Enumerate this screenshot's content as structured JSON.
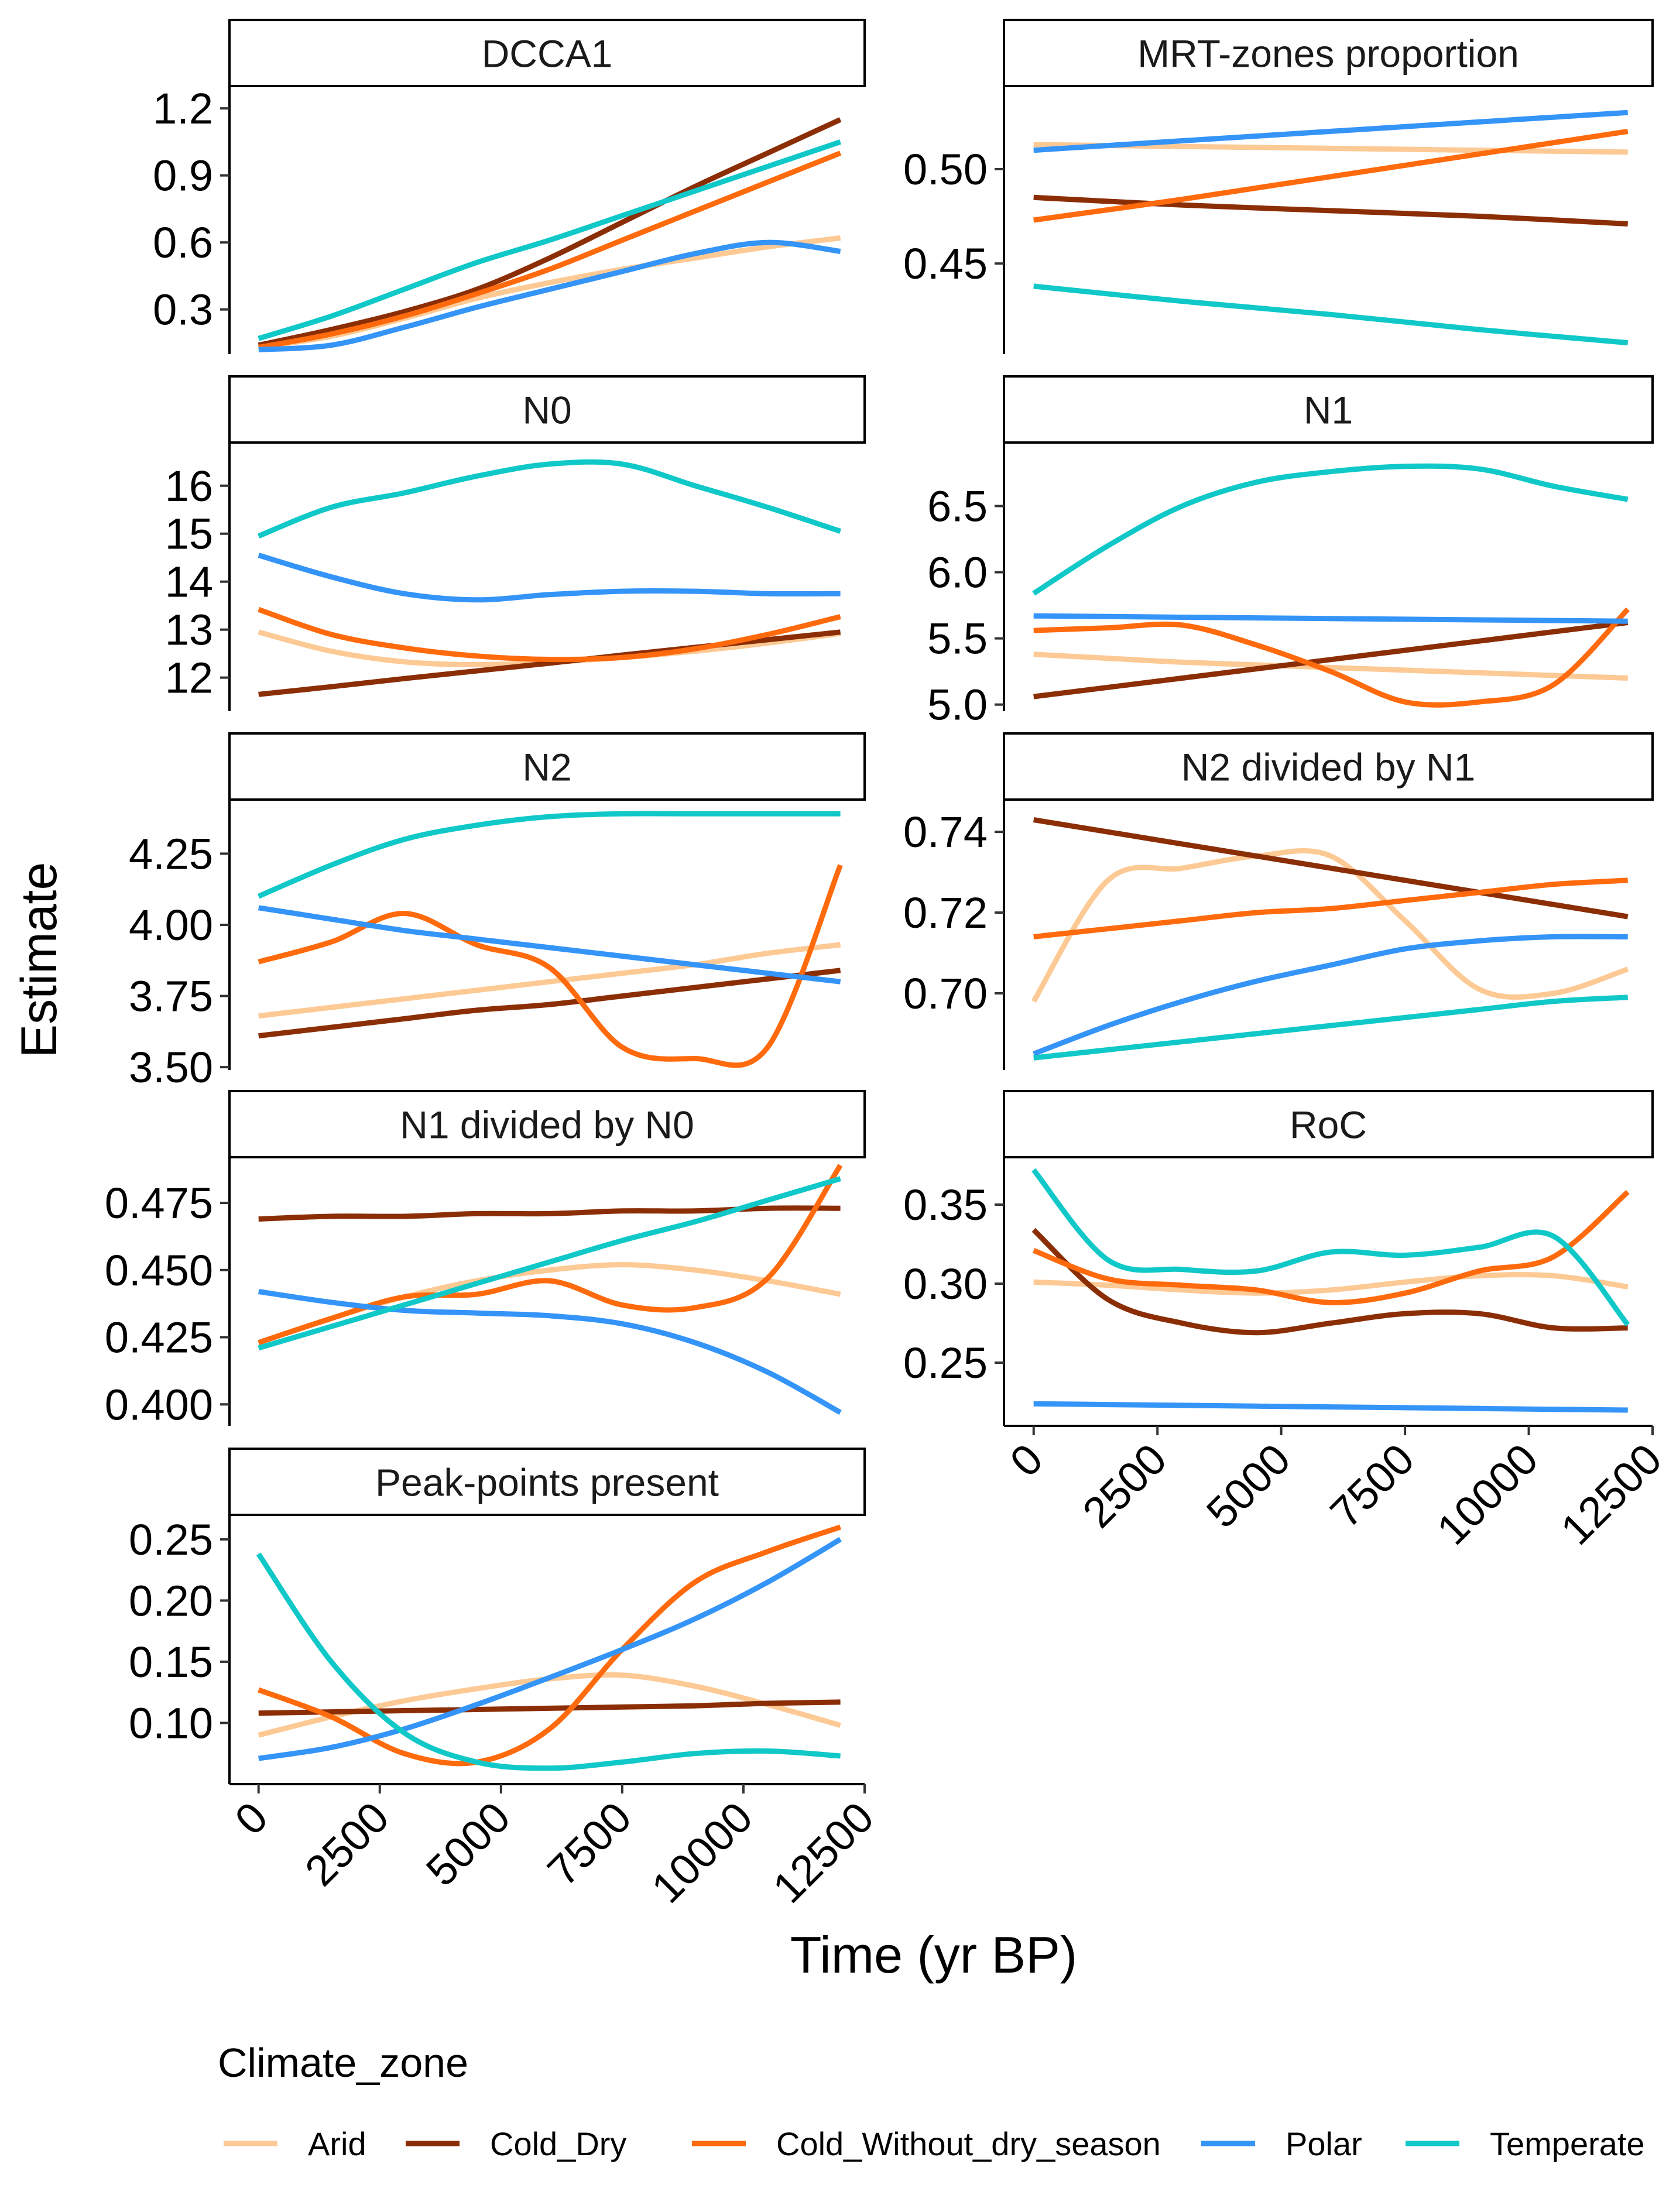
{
  "figure": {
    "ylabel": "Estimate",
    "xlabel": "Time (yr BP)",
    "legend_title": "Climate_zone",
    "legend_position": "bottom"
  },
  "series_colors": {
    "Arid": "#FDC994",
    "Cold_Dry": "#8B2E06",
    "Cold_Without_dry_season": "#FF6A0D",
    "Polar": "#3494F8",
    "Temperate": "#10C8C8"
  },
  "legend": [
    {
      "name": "Arid",
      "color": "#FDC994"
    },
    {
      "name": "Cold_Dry",
      "color": "#8B2E06"
    },
    {
      "name": "Cold_Without_dry_season",
      "color": "#FF6A0D"
    },
    {
      "name": "Polar",
      "color": "#3494F8"
    },
    {
      "name": "Temperate",
      "color": "#10C8C8"
    }
  ],
  "x_ticks": [
    "0",
    "2500",
    "5000",
    "7500",
    "10000",
    "12500"
  ],
  "chart_data": [
    {
      "type": "line",
      "title": "DCCA1",
      "xlim": [
        -600,
        12500
      ],
      "ylim": [
        0.1,
        1.3
      ],
      "yticks": [
        0.3,
        0.6,
        0.9,
        1.2
      ],
      "ytick_labels": [
        "0.3",
        "0.6",
        "0.9",
        "1.2"
      ],
      "x": [
        0,
        1500,
        3000,
        4500,
        6000,
        7500,
        9000,
        10500,
        12000
      ],
      "series": [
        {
          "name": "Arid",
          "values": [
            0.13,
            0.18,
            0.26,
            0.35,
            0.42,
            0.48,
            0.53,
            0.58,
            0.62
          ]
        },
        {
          "name": "Cold_Dry",
          "values": [
            0.14,
            0.21,
            0.29,
            0.39,
            0.53,
            0.69,
            0.85,
            1.0,
            1.15
          ]
        },
        {
          "name": "Cold_Without_dry_season",
          "values": [
            0.13,
            0.19,
            0.27,
            0.37,
            0.48,
            0.61,
            0.74,
            0.87,
            1.0
          ]
        },
        {
          "name": "Polar",
          "values": [
            0.12,
            0.14,
            0.22,
            0.31,
            0.39,
            0.47,
            0.55,
            0.6,
            0.56
          ]
        },
        {
          "name": "Temperate",
          "values": [
            0.17,
            0.27,
            0.39,
            0.51,
            0.61,
            0.72,
            0.83,
            0.94,
            1.05
          ]
        }
      ]
    },
    {
      "type": "line",
      "title": "MRT-zones proportion",
      "xlim": [
        -600,
        12500
      ],
      "ylim": [
        0.402,
        0.544
      ],
      "yticks": [
        0.45,
        0.5
      ],
      "ytick_labels": [
        "0.45",
        "0.50"
      ],
      "x": [
        0,
        3000,
        6000,
        9000,
        12000
      ],
      "series": [
        {
          "name": "Arid",
          "values": [
            0.513,
            0.512,
            0.511,
            0.51,
            0.509
          ]
        },
        {
          "name": "Cold_Dry",
          "values": [
            0.485,
            0.481,
            0.478,
            0.475,
            0.471
          ]
        },
        {
          "name": "Cold_Without_dry_season",
          "values": [
            0.473,
            0.484,
            0.496,
            0.508,
            0.52
          ]
        },
        {
          "name": "Polar",
          "values": [
            0.51,
            0.515,
            0.52,
            0.525,
            0.53
          ]
        },
        {
          "name": "Temperate",
          "values": [
            0.438,
            0.43,
            0.423,
            0.415,
            0.408
          ]
        }
      ]
    },
    {
      "type": "line",
      "title": "N0",
      "xlim": [
        -600,
        12500
      ],
      "ylim": [
        11.3,
        16.9
      ],
      "yticks": [
        12,
        13,
        14,
        15,
        16
      ],
      "ytick_labels": [
        "12",
        "13",
        "14",
        "15",
        "16"
      ],
      "x": [
        0,
        1500,
        3000,
        4500,
        6000,
        7500,
        9000,
        10500,
        12000
      ],
      "series": [
        {
          "name": "Arid",
          "values": [
            12.95,
            12.55,
            12.33,
            12.27,
            12.32,
            12.42,
            12.55,
            12.72,
            12.92
          ]
        },
        {
          "name": "Cold_Dry",
          "values": [
            11.65,
            11.81,
            11.98,
            12.14,
            12.3,
            12.47,
            12.63,
            12.79,
            12.95
          ]
        },
        {
          "name": "Cold_Without_dry_season",
          "values": [
            13.42,
            12.9,
            12.62,
            12.45,
            12.38,
            12.42,
            12.6,
            12.9,
            13.27
          ]
        },
        {
          "name": "Polar",
          "values": [
            14.55,
            14.1,
            13.75,
            13.62,
            13.73,
            13.8,
            13.8,
            13.75,
            13.75
          ]
        },
        {
          "name": "Temperate",
          "values": [
            14.95,
            15.55,
            15.85,
            16.2,
            16.45,
            16.45,
            16.0,
            15.55,
            15.05
          ]
        }
      ]
    },
    {
      "type": "line",
      "title": "N1",
      "xlim": [
        -600,
        12500
      ],
      "ylim": [
        4.95,
        6.98
      ],
      "yticks": [
        5.0,
        5.5,
        6.0,
        6.5
      ],
      "ytick_labels": [
        "5.0",
        "5.5",
        "6.0",
        "6.5"
      ],
      "x": [
        0,
        1500,
        3000,
        4500,
        6000,
        7500,
        9000,
        10500,
        12000
      ],
      "series": [
        {
          "name": "Arid",
          "values": [
            5.38,
            5.35,
            5.32,
            5.3,
            5.28,
            5.26,
            5.24,
            5.22,
            5.2
          ]
        },
        {
          "name": "Cold_Dry",
          "values": [
            5.06,
            5.13,
            5.2,
            5.27,
            5.34,
            5.41,
            5.48,
            5.55,
            5.62
          ]
        },
        {
          "name": "Cold_Without_dry_season",
          "values": [
            5.56,
            5.58,
            5.6,
            5.45,
            5.25,
            5.02,
            5.02,
            5.15,
            5.72
          ]
        },
        {
          "name": "Polar",
          "values": [
            5.67,
            5.665,
            5.66,
            5.655,
            5.65,
            5.645,
            5.64,
            5.635,
            5.63
          ]
        },
        {
          "name": "Temperate",
          "values": [
            5.84,
            6.2,
            6.5,
            6.68,
            6.76,
            6.8,
            6.78,
            6.65,
            6.55
          ]
        }
      ]
    },
    {
      "type": "line",
      "title": "N2",
      "xlim": [
        -600,
        12500
      ],
      "ylim": [
        3.49,
        4.44
      ],
      "yticks": [
        3.5,
        3.75,
        4.0,
        4.25
      ],
      "ytick_labels": [
        "3.50",
        "3.75",
        "4.00",
        "4.25"
      ],
      "x": [
        0,
        1500,
        3000,
        4500,
        6000,
        7500,
        9000,
        10500,
        12000
      ],
      "series": [
        {
          "name": "Arid",
          "values": [
            3.68,
            3.71,
            3.74,
            3.77,
            3.8,
            3.83,
            3.86,
            3.9,
            3.93
          ]
        },
        {
          "name": "Cold_Dry",
          "values": [
            3.61,
            3.64,
            3.67,
            3.7,
            3.72,
            3.75,
            3.78,
            3.81,
            3.84
          ]
        },
        {
          "name": "Cold_Without_dry_season",
          "values": [
            3.87,
            3.94,
            4.04,
            3.93,
            3.85,
            3.57,
            3.53,
            3.57,
            4.21
          ]
        },
        {
          "name": "Polar",
          "values": [
            4.06,
            4.02,
            3.98,
            3.95,
            3.92,
            3.89,
            3.86,
            3.83,
            3.8
          ]
        },
        {
          "name": "Temperate",
          "values": [
            4.1,
            4.21,
            4.3,
            4.35,
            4.38,
            4.39,
            4.39,
            4.39,
            4.39
          ]
        }
      ]
    },
    {
      "type": "line",
      "title": "N2 divided by N1",
      "xlim": [
        -600,
        12500
      ],
      "ylim": [
        0.681,
        0.748
      ],
      "yticks": [
        0.7,
        0.72,
        0.74
      ],
      "ytick_labels": [
        "0.70",
        "0.72",
        "0.74"
      ],
      "x": [
        0,
        1500,
        3000,
        4500,
        6000,
        7500,
        9000,
        10500,
        12000
      ],
      "series": [
        {
          "name": "Arid",
          "values": [
            0.698,
            0.728,
            0.731,
            0.734,
            0.734,
            0.718,
            0.701,
            0.7,
            0.706
          ]
        },
        {
          "name": "Cold_Dry",
          "values": [
            0.743,
            0.74,
            0.737,
            0.734,
            0.731,
            0.728,
            0.725,
            0.722,
            0.719
          ]
        },
        {
          "name": "Cold_Without_dry_season",
          "values": [
            0.714,
            0.716,
            0.718,
            0.72,
            0.721,
            0.723,
            0.725,
            0.727,
            0.728
          ]
        },
        {
          "name": "Polar",
          "values": [
            0.685,
            0.692,
            0.698,
            0.703,
            0.707,
            0.711,
            0.713,
            0.714,
            0.714
          ]
        },
        {
          "name": "Temperate",
          "values": [
            0.684,
            0.686,
            0.688,
            0.69,
            0.692,
            0.694,
            0.696,
            0.698,
            0.699
          ]
        }
      ]
    },
    {
      "type": "line",
      "title": "N1 divided by N0",
      "xlim": [
        -600,
        12500
      ],
      "ylim": [
        0.392,
        0.492
      ],
      "yticks": [
        0.4,
        0.425,
        0.45,
        0.475
      ],
      "ytick_labels": [
        "0.400",
        "0.425",
        "0.450",
        "0.475"
      ],
      "x": [
        0,
        1500,
        3000,
        4500,
        6000,
        7500,
        9000,
        10500,
        12000
      ],
      "series": [
        {
          "name": "Arid",
          "values": [
            0.423,
            0.432,
            0.44,
            0.446,
            0.45,
            0.452,
            0.45,
            0.446,
            0.441
          ]
        },
        {
          "name": "Cold_Dry",
          "values": [
            0.469,
            0.47,
            0.47,
            0.471,
            0.471,
            0.472,
            0.472,
            0.473,
            0.473
          ]
        },
        {
          "name": "Cold_Without_dry_season",
          "values": [
            0.423,
            0.432,
            0.44,
            0.441,
            0.446,
            0.437,
            0.436,
            0.447,
            0.489
          ]
        },
        {
          "name": "Polar",
          "values": [
            0.442,
            0.438,
            0.435,
            0.434,
            0.433,
            0.43,
            0.423,
            0.412,
            0.397
          ]
        },
        {
          "name": "Temperate",
          "values": [
            0.421,
            0.429,
            0.437,
            0.445,
            0.453,
            0.461,
            0.468,
            0.476,
            0.484
          ]
        }
      ]
    },
    {
      "type": "line",
      "title": "RoC",
      "xlim": [
        -600,
        12500
      ],
      "ylim": [
        0.21,
        0.38
      ],
      "yticks": [
        0.25,
        0.3,
        0.35
      ],
      "ytick_labels": [
        "0.25",
        "0.30",
        "0.35"
      ],
      "x": [
        0,
        1500,
        3000,
        4500,
        6000,
        7500,
        9000,
        10500,
        12000
      ],
      "series": [
        {
          "name": "Arid",
          "values": [
            0.301,
            0.299,
            0.296,
            0.294,
            0.296,
            0.301,
            0.305,
            0.305,
            0.298
          ]
        },
        {
          "name": "Cold_Dry",
          "values": [
            0.334,
            0.29,
            0.275,
            0.269,
            0.275,
            0.281,
            0.281,
            0.272,
            0.272
          ]
        },
        {
          "name": "Cold_Without_dry_season",
          "values": [
            0.321,
            0.303,
            0.299,
            0.296,
            0.288,
            0.294,
            0.308,
            0.317,
            0.358
          ]
        },
        {
          "name": "Polar",
          "values": [
            0.224,
            0.2235,
            0.223,
            0.2225,
            0.222,
            0.2215,
            0.221,
            0.2205,
            0.22
          ]
        },
        {
          "name": "Temperate",
          "values": [
            0.372,
            0.315,
            0.309,
            0.308,
            0.32,
            0.318,
            0.323,
            0.33,
            0.274
          ]
        }
      ]
    },
    {
      "type": "line",
      "title": "Peak-points present",
      "xlim": [
        -600,
        12500
      ],
      "ylim": [
        0.05,
        0.27
      ],
      "yticks": [
        0.1,
        0.15,
        0.2,
        0.25
      ],
      "ytick_labels": [
        "0.10",
        "0.15",
        "0.20",
        "0.25"
      ],
      "x": [
        0,
        1500,
        3000,
        4500,
        6000,
        7500,
        9000,
        10500,
        12000
      ],
      "series": [
        {
          "name": "Arid",
          "values": [
            0.09,
            0.105,
            0.118,
            0.128,
            0.136,
            0.139,
            0.13,
            0.115,
            0.098
          ]
        },
        {
          "name": "Cold_Dry",
          "values": [
            0.108,
            0.109,
            0.11,
            0.111,
            0.112,
            0.113,
            0.114,
            0.116,
            0.117
          ]
        },
        {
          "name": "Cold_Without_dry_season",
          "values": [
            0.127,
            0.105,
            0.075,
            0.068,
            0.095,
            0.16,
            0.215,
            0.24,
            0.26
          ]
        },
        {
          "name": "Polar",
          "values": [
            0.071,
            0.08,
            0.095,
            0.115,
            0.137,
            0.16,
            0.185,
            0.215,
            0.25
          ]
        },
        {
          "name": "Temperate",
          "values": [
            0.238,
            0.15,
            0.092,
            0.068,
            0.063,
            0.068,
            0.075,
            0.077,
            0.073
          ]
        }
      ]
    }
  ]
}
